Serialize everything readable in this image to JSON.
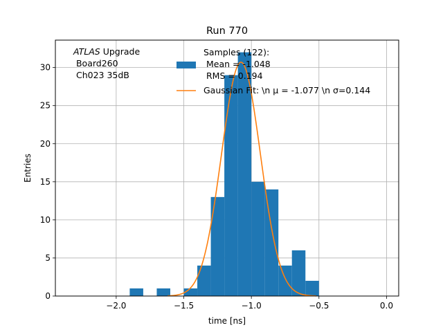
{
  "chart_data": {
    "type": "bar",
    "title": "Run 770",
    "xlabel": "time [ns]",
    "ylabel": "Entries",
    "xlim": [
      -2.45,
      0.09
    ],
    "ylim": [
      0,
      33.6
    ],
    "grid": true,
    "x_ticks": [
      -2.0,
      -1.5,
      -1.0,
      -0.5,
      0.0
    ],
    "x_tick_labels": [
      "−2.0",
      "−1.5",
      "−1.0",
      "−0.5",
      "0.0"
    ],
    "y_ticks": [
      0,
      5,
      10,
      15,
      20,
      25,
      30
    ],
    "y_tick_labels": [
      "0",
      "5",
      "10",
      "15",
      "20",
      "25",
      "30"
    ],
    "bin_width": 0.1,
    "bins": [
      {
        "left": -1.9,
        "count": 1
      },
      {
        "left": -1.7,
        "count": 1
      },
      {
        "left": -1.5,
        "count": 1
      },
      {
        "left": -1.4,
        "count": 4
      },
      {
        "left": -1.3,
        "count": 13
      },
      {
        "left": -1.2,
        "count": 29
      },
      {
        "left": -1.1,
        "count": 32
      },
      {
        "left": -1.0,
        "count": 15
      },
      {
        "left": -0.9,
        "count": 14
      },
      {
        "left": -0.8,
        "count": 4
      },
      {
        "left": -0.7,
        "count": 6
      },
      {
        "left": -0.6,
        "count": 2
      }
    ],
    "fit": {
      "mu": -1.077,
      "sigma": 0.144,
      "amplitude": 30.7,
      "range": [
        -1.62,
        -0.52
      ]
    },
    "annotation": {
      "italic": "ATLAS",
      "rest": " Upgrade",
      "line2": " Board260",
      "line3": " Ch023 35dB"
    },
    "legend": {
      "samples_lines": [
        "Samples (122):",
        " Mean = -1.048",
        " RMS = 0.194"
      ],
      "fit_label": "Gaussian Fit: \\n μ = -1.077 \\n σ=0.144"
    },
    "colors": {
      "bars": "#1f77b4",
      "fit": "#ff7f0e",
      "grid": "#b0b0b0"
    }
  }
}
